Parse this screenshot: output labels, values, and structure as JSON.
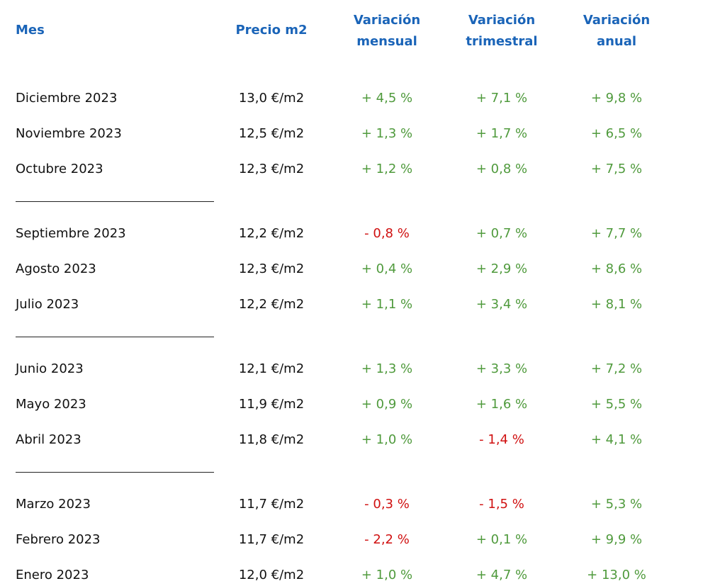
{
  "headers": {
    "mes": "Mes",
    "precio": "Precio m2",
    "mensual": [
      "Variación",
      "mensual"
    ],
    "trimestral": [
      "Variación",
      "trimestral"
    ],
    "anual": [
      "Variación",
      "anual"
    ]
  },
  "colors": {
    "header": "#1a64b8",
    "positive": "#4f9a3c",
    "negative": "#d01010",
    "text": "#111111"
  },
  "rows": [
    {
      "mes": "Diciembre 2023",
      "precio": "13,0 €/m2",
      "mensual": "+ 4,5 %",
      "trimestral": "+ 7,1 %",
      "anual": "+ 9,8 %"
    },
    {
      "mes": "Noviembre 2023",
      "precio": "12,5 €/m2",
      "mensual": "+ 1,3 %",
      "trimestral": "+ 1,7 %",
      "anual": "+ 6,5 %"
    },
    {
      "mes": "Octubre 2023",
      "precio": "12,3 €/m2",
      "mensual": "+ 1,2 %",
      "trimestral": "+ 0,8 %",
      "anual": "+ 7,5 %"
    },
    {
      "mes": "Septiembre 2023",
      "precio": "12,2 €/m2",
      "mensual": "- 0,8 %",
      "trimestral": "+ 0,7 %",
      "anual": "+ 7,7 %"
    },
    {
      "mes": "Agosto 2023",
      "precio": "12,3 €/m2",
      "mensual": "+ 0,4 %",
      "trimestral": "+ 2,9 %",
      "anual": "+ 8,6 %"
    },
    {
      "mes": "Julio 2023",
      "precio": "12,2 €/m2",
      "mensual": "+ 1,1 %",
      "trimestral": "+ 3,4 %",
      "anual": "+ 8,1 %"
    },
    {
      "mes": "Junio 2023",
      "precio": "12,1 €/m2",
      "mensual": "+ 1,3 %",
      "trimestral": "+ 3,3 %",
      "anual": "+ 7,2 %"
    },
    {
      "mes": "Mayo 2023",
      "precio": "11,9 €/m2",
      "mensual": "+ 0,9 %",
      "trimestral": "+ 1,6 %",
      "anual": "+ 5,5 %"
    },
    {
      "mes": "Abril 2023",
      "precio": "11,8 €/m2",
      "mensual": "+ 1,0 %",
      "trimestral": "- 1,4 %",
      "anual": "+ 4,1 %"
    },
    {
      "mes": "Marzo 2023",
      "precio": "11,7 €/m2",
      "mensual": "- 0,3 %",
      "trimestral": "- 1,5 %",
      "anual": "+ 5,3 %"
    },
    {
      "mes": "Febrero 2023",
      "precio": "11,7 €/m2",
      "mensual": "- 2,2 %",
      "trimestral": "+ 0,1 %",
      "anual": "+ 9,9 %"
    },
    {
      "mes": "Enero 2023",
      "precio": "12,0 €/m2",
      "mensual": "+ 1,0 %",
      "trimestral": "+ 4,7 %",
      "anual": "+ 13,0 %"
    }
  ]
}
